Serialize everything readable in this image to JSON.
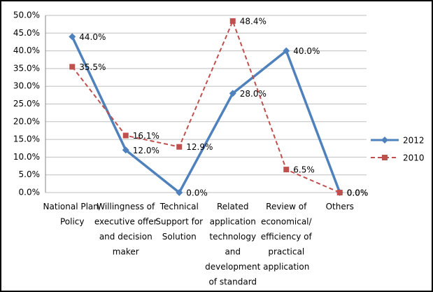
{
  "chart_data": {
    "type": "line",
    "categories": [
      "National Plan/Policy",
      "Willingness of executive offer and decision maker",
      "Technical Support for Solution",
      "Related application technology and development of standard",
      "Review of economical/ efficiency of practical application",
      "Others"
    ],
    "series": [
      {
        "name": "2012",
        "color": "#4f81bd",
        "marker": "diamond",
        "dash": false,
        "values": [
          44,
          12,
          0,
          28,
          40,
          0
        ],
        "value_labels": [
          "44.0%",
          "12.0%",
          "0.0%",
          "28.0%",
          "40.0%",
          "0.0%"
        ]
      },
      {
        "name": "2010",
        "color": "#c0504d",
        "marker": "square",
        "dash": true,
        "values": [
          35.5,
          16.1,
          12.9,
          48.4,
          6.5,
          0
        ],
        "value_labels": [
          "35.5%",
          "16.1%",
          "12.9%",
          "48.4%",
          "6.5%",
          "0.0%"
        ]
      }
    ],
    "ylim": [
      0,
      50
    ],
    "yticks": [
      {
        "value": 0,
        "label": "0.0%"
      },
      {
        "value": 5,
        "label": "5.0%"
      },
      {
        "value": 10,
        "label": "10.0%"
      },
      {
        "value": 15,
        "label": "15.0%"
      },
      {
        "value": 20,
        "label": "20.0%"
      },
      {
        "value": 25,
        "label": "25.0%"
      },
      {
        "value": 30,
        "label": "30.0%"
      },
      {
        "value": 35,
        "label": "35.0%"
      },
      {
        "value": 40,
        "label": "40.0%"
      },
      {
        "value": 45,
        "label": "45.0%"
      },
      {
        "value": 50,
        "label": "50.0%"
      }
    ],
    "grid": true,
    "legend": "right"
  }
}
